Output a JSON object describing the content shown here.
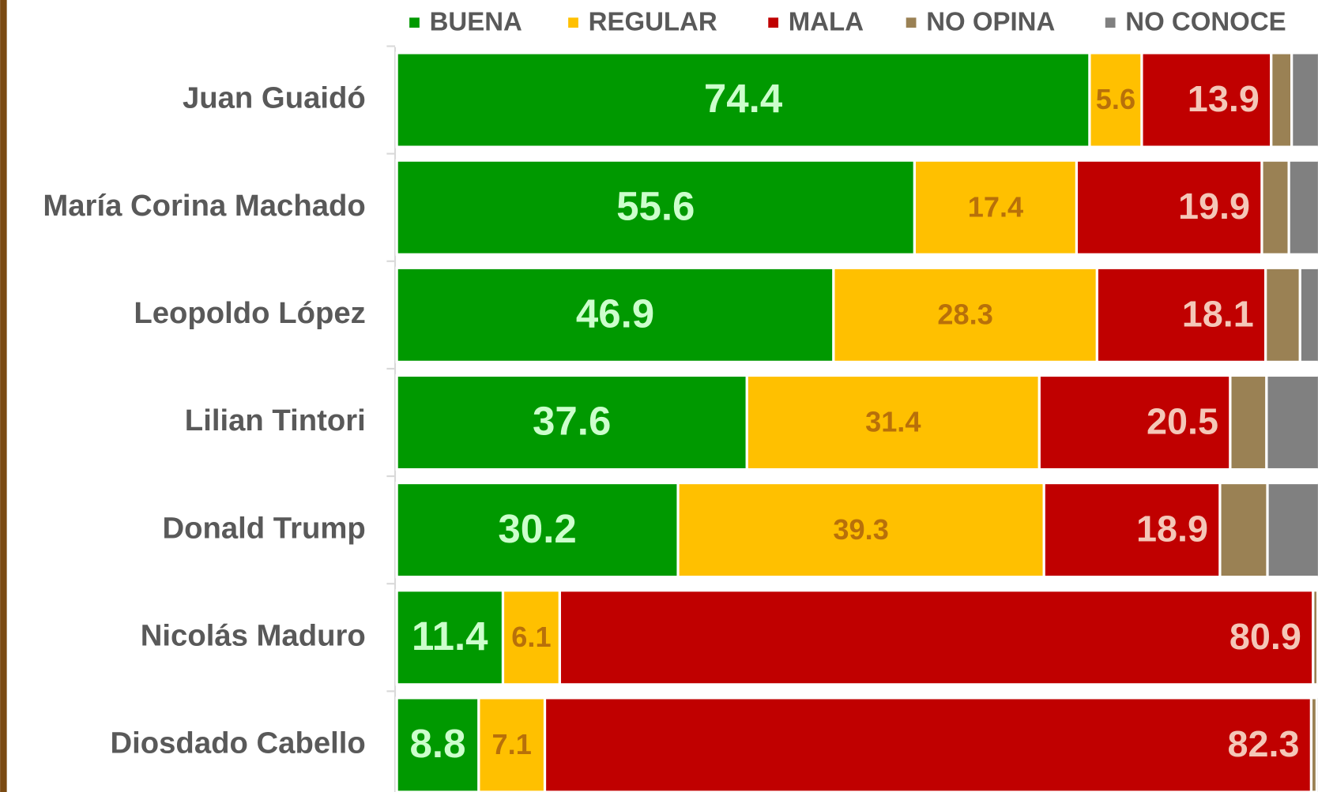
{
  "chart_data": {
    "type": "stacked_bar_horizontal",
    "categories": [
      "Juan Guaidó",
      "María Corina Machado",
      "Leopoldo López",
      "Lilian Tintori",
      "Donald Trump",
      "Nicolás Maduro",
      "Diosdado Cabello"
    ],
    "xlim": [
      0,
      100
    ],
    "legend": "top",
    "series": [
      {
        "name": "BUENA",
        "color": "#009900",
        "label_color": "#ccffcc",
        "label_position": "center",
        "values": [
          74.4,
          55.6,
          46.9,
          37.6,
          30.2,
          11.4,
          8.8
        ],
        "value_labels": [
          "74.4",
          "55.6",
          "46.9",
          "37.6",
          "30.2",
          "11.4",
          "8.8"
        ]
      },
      {
        "name": "REGULAR",
        "color": "#ffc000",
        "label_color": "#b8700a",
        "label_position": "center",
        "values": [
          5.6,
          17.4,
          28.3,
          31.4,
          39.3,
          6.1,
          7.1
        ],
        "value_labels": [
          "5.6",
          "17.4",
          "28.3",
          "31.4",
          "39.3",
          "6.1",
          "7.1"
        ]
      },
      {
        "name": "MALA",
        "color": "#c00000",
        "label_color": "#f4c7b8",
        "label_position": "inside_end",
        "values": [
          13.9,
          19.9,
          18.1,
          20.5,
          18.9,
          80.9,
          82.3
        ],
        "value_labels": [
          "13.9",
          "19.9",
          "18.1",
          "20.5",
          "18.9",
          "80.9",
          "82.3"
        ]
      },
      {
        "name": "NO OPINA",
        "color": "#9a8154",
        "values": [
          2.2,
          2.9,
          3.7,
          3.9,
          5.1,
          0.5,
          0.6
        ]
      },
      {
        "name": "NO CONOCE",
        "color": "#808080",
        "values": [
          3.9,
          4.2,
          3.0,
          6.6,
          6.5,
          1.1,
          1.2
        ]
      }
    ]
  }
}
